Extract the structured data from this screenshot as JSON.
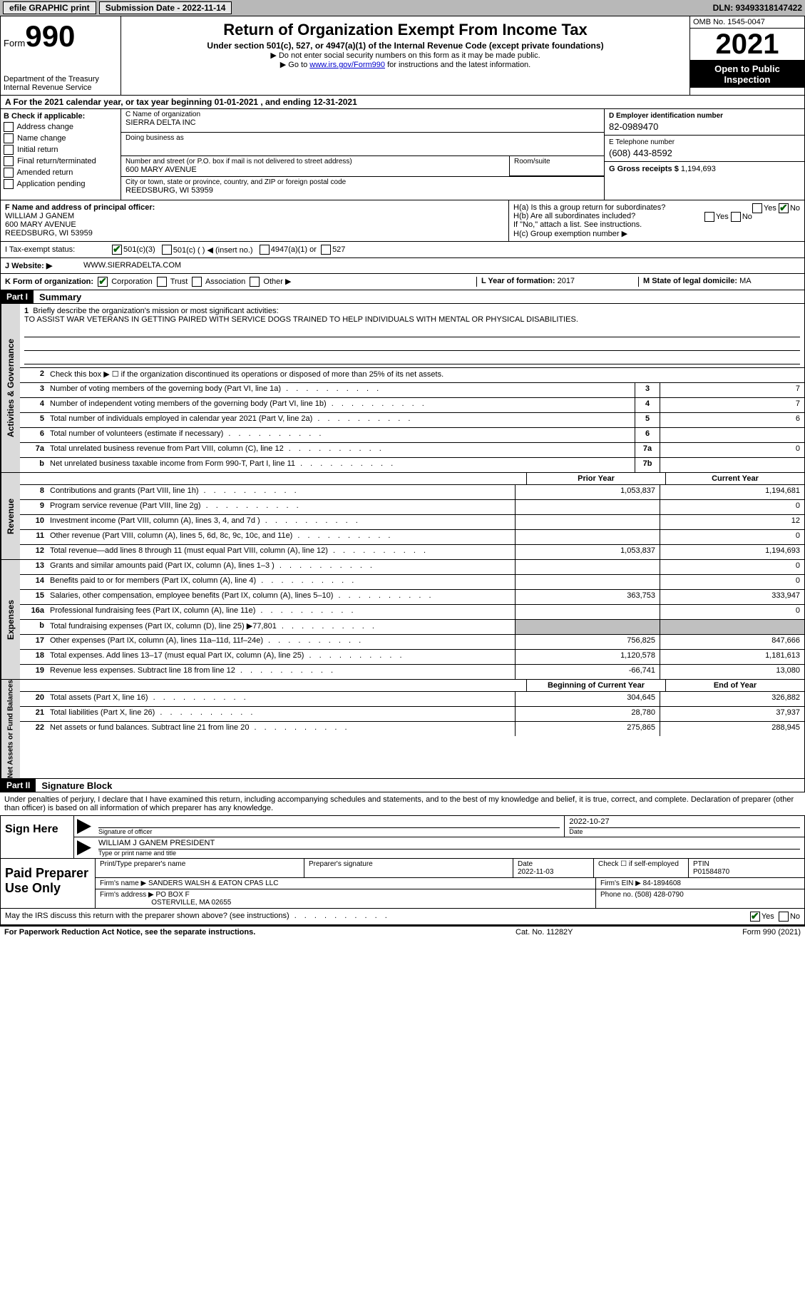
{
  "topbar": {
    "efile_label": "efile GRAPHIC print",
    "submission_label": "Submission Date - 2022-11-14",
    "dln_label": "DLN: 93493318147422"
  },
  "header": {
    "form_label": "Form",
    "form_number": "990",
    "dept1": "Department of the Treasury",
    "dept2": "Internal Revenue Service",
    "title": "Return of Organization Exempt From Income Tax",
    "subtitle": "Under section 501(c), 527, or 4947(a)(1) of the Internal Revenue Code (except private foundations)",
    "note1": "Do not enter social security numbers on this form as it may be made public.",
    "note2_prefix": "Go to ",
    "note2_link": "www.irs.gov/Form990",
    "note2_suffix": " for instructions and the latest information.",
    "omb": "OMB No. 1545-0047",
    "year": "2021",
    "open_public": "Open to Public Inspection"
  },
  "row_a": "A For the 2021 calendar year, or tax year beginning 01-01-2021    , and ending 12-31-2021",
  "section_b": {
    "label": "B Check if applicable:",
    "items": [
      "Address change",
      "Name change",
      "Initial return",
      "Final return/terminated",
      "Amended return",
      "Application pending"
    ]
  },
  "section_c": {
    "name_label": "C Name of organization",
    "name": "SIERRA DELTA INC",
    "dba_label": "Doing business as",
    "dba": "",
    "street_label": "Number and street (or P.O. box if mail is not delivered to street address)",
    "room_label": "Room/suite",
    "street": "600 MARY AVENUE",
    "city_label": "City or town, state or province, country, and ZIP or foreign postal code",
    "city": "REEDSBURG, WI  53959"
  },
  "section_d": {
    "ein_label": "D Employer identification number",
    "ein": "82-0989470",
    "phone_label": "E Telephone number",
    "phone": "(608) 443-8592",
    "gross_label": "G Gross receipts $",
    "gross": "1,194,693"
  },
  "officer": {
    "label": "F Name and address of principal officer:",
    "name": "WILLIAM J GANEM",
    "street": "600 MARY AVENUE",
    "city": "REEDSBURG, WI  53959"
  },
  "section_h": {
    "ha": "H(a)  Is this a group return for subordinates?",
    "hb": "H(b)  Are all subordinates included?",
    "hb_note": "If \"No,\" attach a list. See instructions.",
    "hc": "H(c)  Group exemption number ▶",
    "yes": "Yes",
    "no": "No"
  },
  "status": {
    "label": "I   Tax-exempt status:",
    "opt1": "501(c)(3)",
    "opt2": "501(c) (  ) ◀ (insert no.)",
    "opt3": "4947(a)(1) or",
    "opt4": "527"
  },
  "website": {
    "label": "J   Website: ▶",
    "value": "WWW.SIERRADELTA.COM"
  },
  "korg": {
    "label": "K Form of organization:",
    "opts": [
      "Corporation",
      "Trust",
      "Association",
      "Other ▶"
    ],
    "l_label": "L Year of formation:",
    "l_value": "2017",
    "m_label": "M State of legal domicile:",
    "m_value": "MA"
  },
  "part1": {
    "header": "Part I",
    "title": "Summary"
  },
  "summary": {
    "line1_label": "Briefly describe the organization's mission or most significant activities:",
    "line1_text": "TO ASSIST WAR VETERANS IN GETTING PAIRED WITH SERVICE DOGS TRAINED TO HELP INDIVIDUALS WITH MENTAL OR PHYSICAL DISABILITIES.",
    "line2": "Check this box ▶ ☐  if the organization discontinued its operations or disposed of more than 25% of its net assets.",
    "line3": "Number of voting members of the governing body (Part VI, line 1a)",
    "line4": "Number of independent voting members of the governing body (Part VI, line 1b)",
    "line5": "Total number of individuals employed in calendar year 2021 (Part V, line 2a)",
    "line6": "Total number of volunteers (estimate if necessary)",
    "line7a": "Total unrelated business revenue from Part VIII, column (C), line 12",
    "line7b": "Net unrelated business taxable income from Form 990-T, Part I, line 11",
    "v3": "7",
    "v4": "7",
    "v5": "6",
    "v6": "",
    "v7a": "0",
    "v7b": ""
  },
  "revenue": {
    "prior_label": "Prior Year",
    "current_label": "Current Year",
    "lines": [
      {
        "n": "8",
        "d": "Contributions and grants (Part VIII, line 1h)",
        "p": "1,053,837",
        "c": "1,194,681"
      },
      {
        "n": "9",
        "d": "Program service revenue (Part VIII, line 2g)",
        "p": "",
        "c": "0"
      },
      {
        "n": "10",
        "d": "Investment income (Part VIII, column (A), lines 3, 4, and 7d )",
        "p": "",
        "c": "12"
      },
      {
        "n": "11",
        "d": "Other revenue (Part VIII, column (A), lines 5, 6d, 8c, 9c, 10c, and 11e)",
        "p": "",
        "c": "0"
      },
      {
        "n": "12",
        "d": "Total revenue—add lines 8 through 11 (must equal Part VIII, column (A), line 12)",
        "p": "1,053,837",
        "c": "1,194,693"
      }
    ]
  },
  "expenses": {
    "lines": [
      {
        "n": "13",
        "d": "Grants and similar amounts paid (Part IX, column (A), lines 1–3 )",
        "p": "",
        "c": "0"
      },
      {
        "n": "14",
        "d": "Benefits paid to or for members (Part IX, column (A), line 4)",
        "p": "",
        "c": "0"
      },
      {
        "n": "15",
        "d": "Salaries, other compensation, employee benefits (Part IX, column (A), lines 5–10)",
        "p": "363,753",
        "c": "333,947"
      },
      {
        "n": "16a",
        "d": "Professional fundraising fees (Part IX, column (A), line 11e)",
        "p": "",
        "c": "0"
      },
      {
        "n": "b",
        "d": "Total fundraising expenses (Part IX, column (D), line 25) ▶77,801",
        "p": "shaded",
        "c": "shaded"
      },
      {
        "n": "17",
        "d": "Other expenses (Part IX, column (A), lines 11a–11d, 11f–24e)",
        "p": "756,825",
        "c": "847,666"
      },
      {
        "n": "18",
        "d": "Total expenses. Add lines 13–17 (must equal Part IX, column (A), line 25)",
        "p": "1,120,578",
        "c": "1,181,613"
      },
      {
        "n": "19",
        "d": "Revenue less expenses. Subtract line 18 from line 12",
        "p": "-66,741",
        "c": "13,080"
      }
    ]
  },
  "netassets": {
    "begin_label": "Beginning of Current Year",
    "end_label": "End of Year",
    "lines": [
      {
        "n": "20",
        "d": "Total assets (Part X, line 16)",
        "p": "304,645",
        "c": "326,882"
      },
      {
        "n": "21",
        "d": "Total liabilities (Part X, line 26)",
        "p": "28,780",
        "c": "37,937"
      },
      {
        "n": "22",
        "d": "Net assets or fund balances. Subtract line 21 from line 20",
        "p": "275,865",
        "c": "288,945"
      }
    ]
  },
  "part2": {
    "header": "Part II",
    "title": "Signature Block",
    "intro": "Under penalties of perjury, I declare that I have examined this return, including accompanying schedules and statements, and to the best of my knowledge and belief, it is true, correct, and complete. Declaration of preparer (other than officer) is based on all information of which preparer has any knowledge."
  },
  "sign": {
    "label": "Sign Here",
    "sig_label": "Signature of officer",
    "date_label": "Date",
    "date": "2022-10-27",
    "name": "WILLIAM J GANEM  PRESIDENT",
    "name_label": "Type or print name and title"
  },
  "preparer": {
    "label": "Paid Preparer Use Only",
    "print_label": "Print/Type preparer's name",
    "sig_label": "Preparer's signature",
    "date_label": "Date",
    "date": "2022-11-03",
    "check_label": "Check ☐ if self-employed",
    "ptin_label": "PTIN",
    "ptin": "P01584870",
    "firm_name_label": "Firm's name     ▶",
    "firm_name": "SANDERS WALSH & EATON CPAS LLC",
    "firm_ein_label": "Firm's EIN ▶",
    "firm_ein": "84-1894608",
    "firm_addr_label": "Firm's address ▶",
    "firm_addr1": "PO BOX F",
    "firm_addr2": "OSTERVILLE, MA  02655",
    "phone_label": "Phone no.",
    "phone": "(508) 428-0790"
  },
  "discuss": {
    "text": "May the IRS discuss this return with the preparer shown above? (see instructions)",
    "yes": "Yes",
    "no": "No"
  },
  "footer": {
    "left": "For Paperwork Reduction Act Notice, see the separate instructions.",
    "mid": "Cat. No. 11282Y",
    "right": "Form 990 (2021)"
  },
  "vtabs": {
    "activities": "Activities & Governance",
    "revenue": "Revenue",
    "expenses": "Expenses",
    "netassets": "Net Assets or Fund Balances"
  }
}
